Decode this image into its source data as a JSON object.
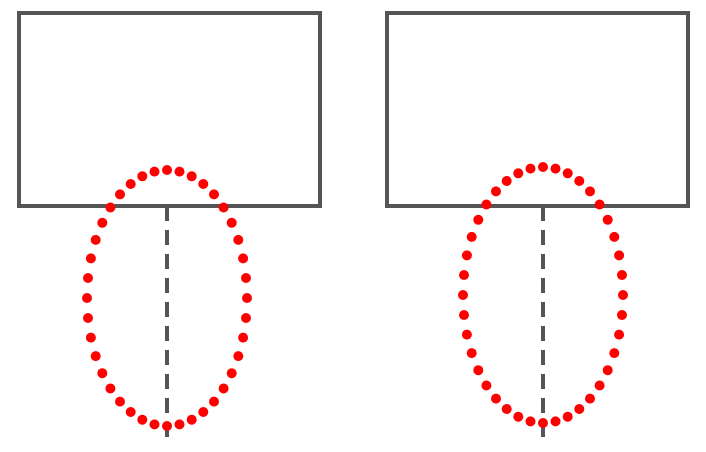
{
  "diagram": {
    "panels": [
      {
        "id": "left",
        "shapes": [
          "rectangle",
          "dashed-vertical-line",
          "dotted-ellipse"
        ]
      },
      {
        "id": "right",
        "shapes": [
          "rectangle",
          "dashed-vertical-line",
          "dotted-ellipse"
        ]
      }
    ],
    "colors": {
      "outline": "#555555",
      "dots": "#ff0000",
      "background": "#ffffff"
    }
  }
}
